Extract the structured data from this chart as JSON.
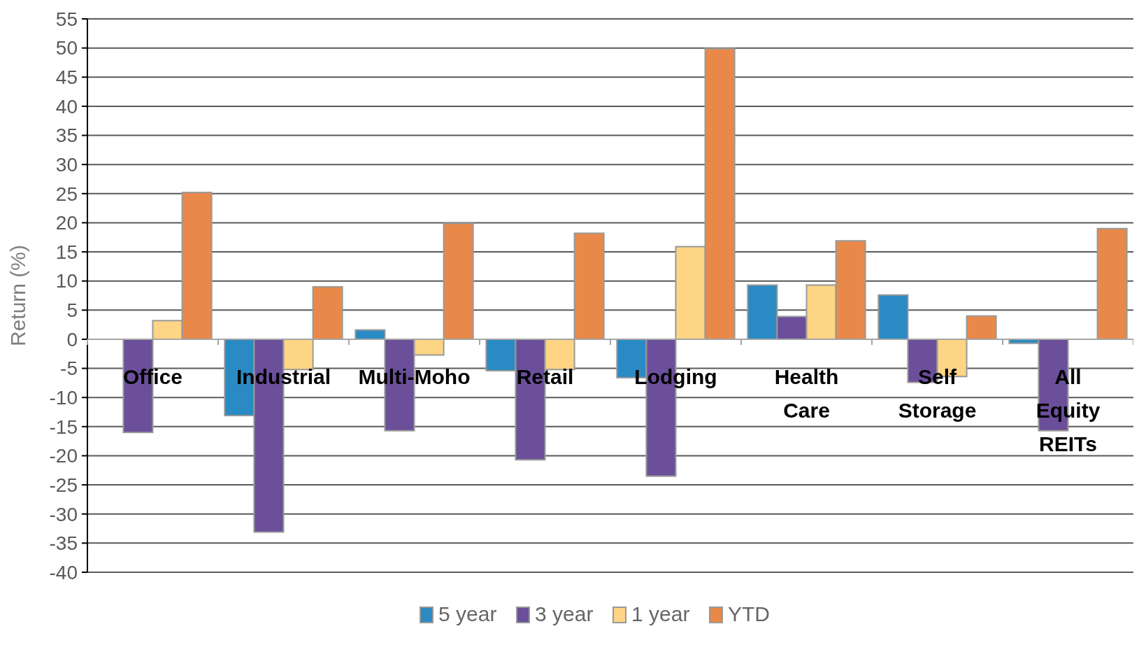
{
  "chart_data": {
    "type": "bar",
    "ylabel": "Return (%)",
    "categories": [
      "Office",
      "Industrial",
      "Multi-Moho",
      "Retail",
      "Lodging",
      "Health Care",
      "Self Storage",
      "All Equity REITs"
    ],
    "series": [
      {
        "name": "5 year",
        "color": "#2a8ac4",
        "values": [
          null,
          -13.1,
          1.6,
          -5.4,
          -6.6,
          9.3,
          7.6,
          -0.7
        ]
      },
      {
        "name": "3 year",
        "color": "#6b4f9a",
        "values": [
          -16.0,
          -33.1,
          -15.7,
          -20.7,
          -23.5,
          3.9,
          -7.4,
          -15.7
        ]
      },
      {
        "name": "1 year",
        "color": "#fdd584",
        "values": [
          3.2,
          -5.2,
          -2.7,
          -5.2,
          15.9,
          9.3,
          -6.4,
          null
        ]
      },
      {
        "name": "YTD",
        "color": "#e8894a",
        "values": [
          25.2,
          9.0,
          19.9,
          18.2,
          49.9,
          16.9,
          4.0,
          19.0
        ]
      }
    ],
    "ylim": [
      -40,
      55
    ],
    "yticks": [
      55,
      50,
      45,
      40,
      35,
      30,
      25,
      20,
      15,
      10,
      5,
      0,
      -5,
      -10,
      -15,
      -20,
      -25,
      -30,
      -35,
      -40
    ],
    "grid": "y",
    "legend": "bottom"
  }
}
